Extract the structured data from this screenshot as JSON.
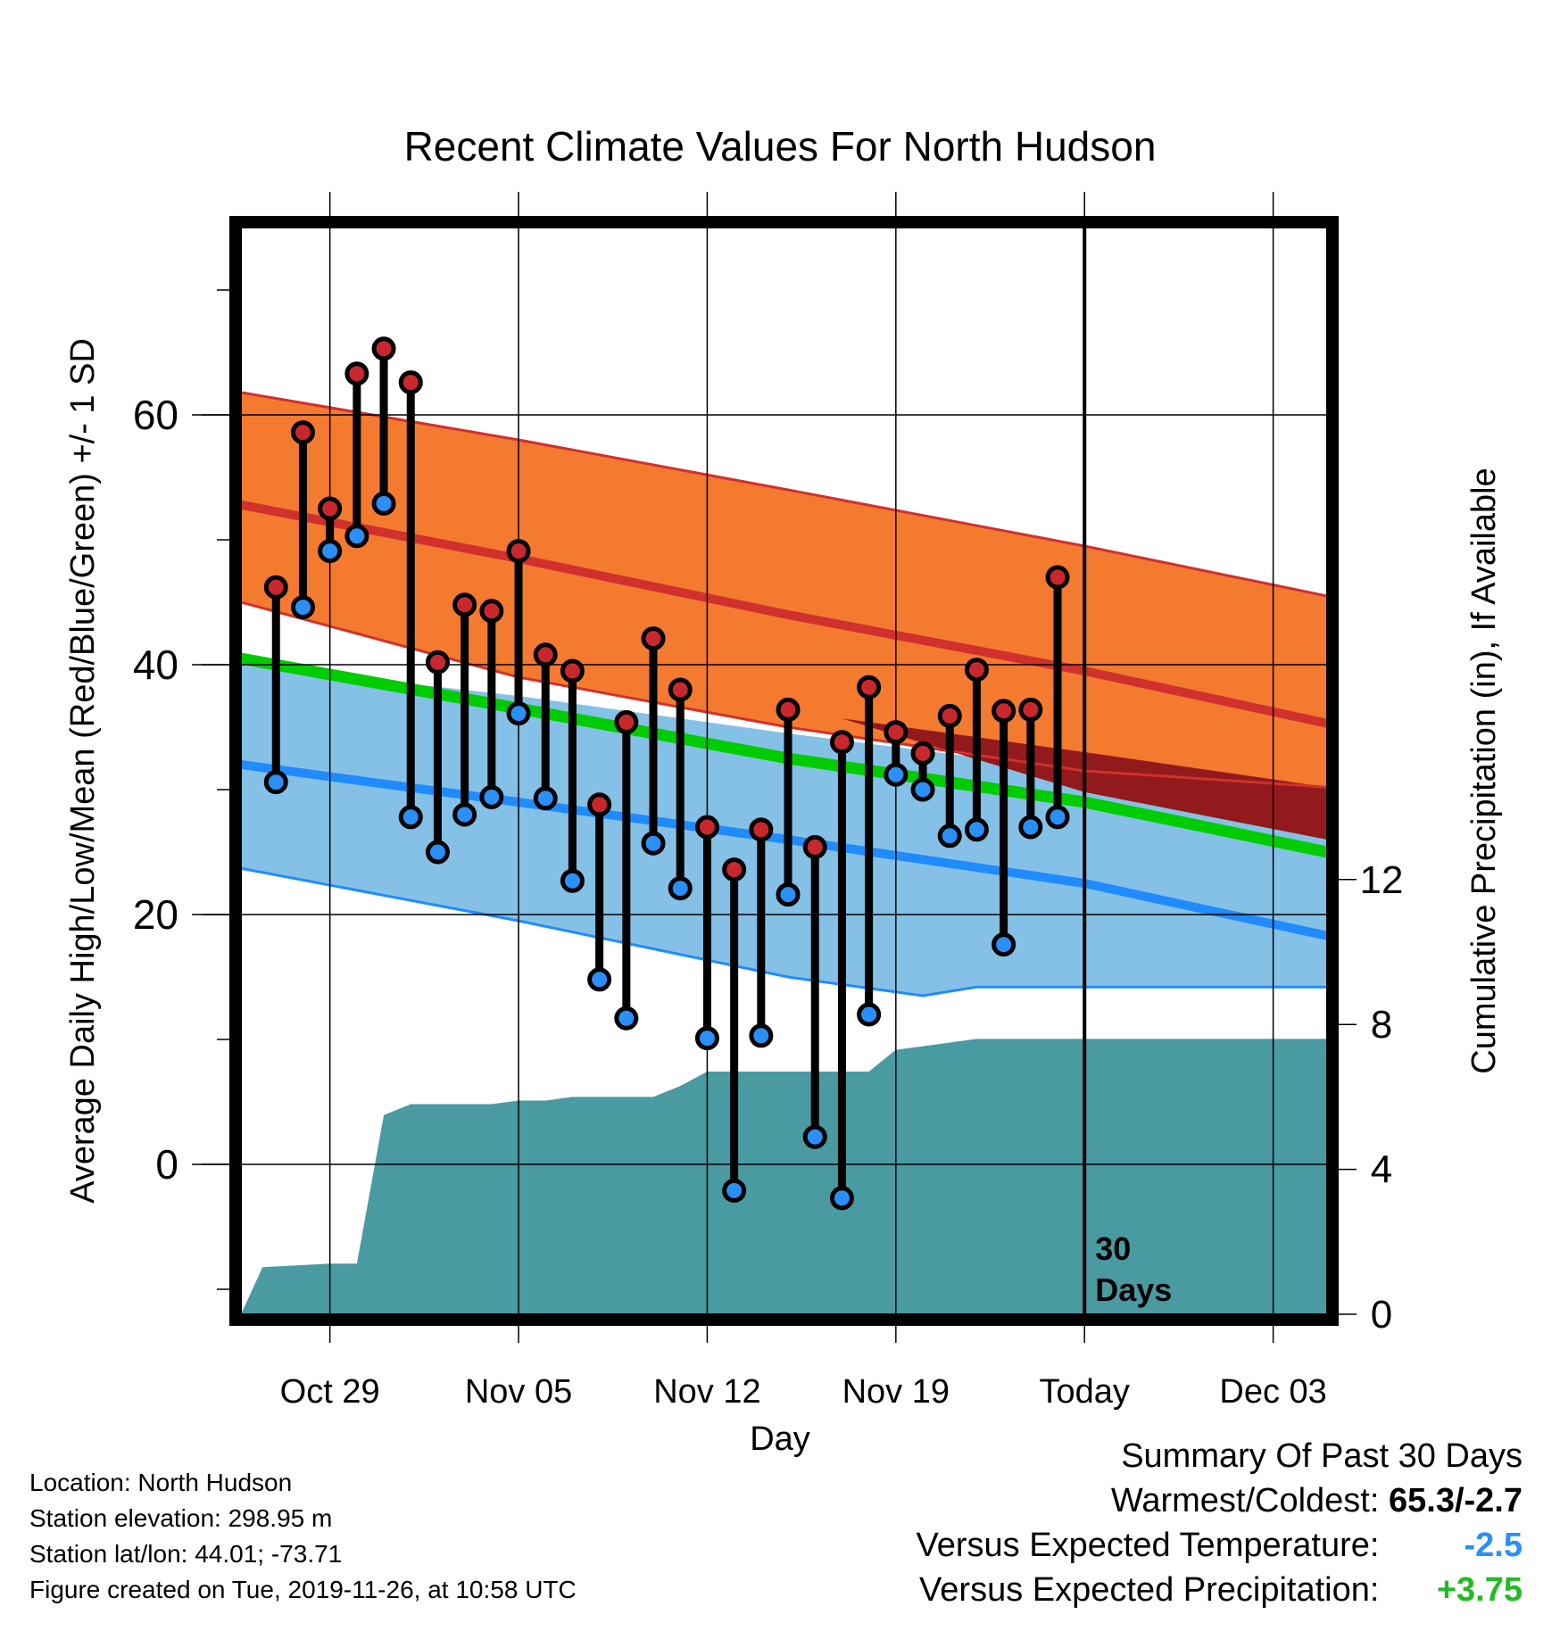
{
  "chart_data": {
    "type": "line",
    "title": "Recent Climate Values For North Hudson",
    "xlabel": "Day",
    "ylabel": "Average Daily High/Low/Mean (Red/Blue/Green) +/- 1 SD",
    "y2label": "Cumulative Precipitation (in), If Available",
    "x_ticks": [
      {
        "day": 3,
        "label": "Oct 29"
      },
      {
        "day": 10,
        "label": "Nov 05"
      },
      {
        "day": 17,
        "label": "Nov 12"
      },
      {
        "day": 24,
        "label": "Nov 19"
      },
      {
        "day": 31,
        "label": "Today"
      },
      {
        "day": 38,
        "label": "Dec 03"
      }
    ],
    "xlim": [
      -0.3,
      40.0
    ],
    "ylim": [
      -12,
      75
    ],
    "y_ticks": [
      0,
      20,
      40,
      60
    ],
    "y2lim": [
      0,
      30
    ],
    "y2_ticks": [
      0,
      4,
      8,
      12
    ],
    "today_day": 31,
    "today_annotation": [
      "30",
      "Days"
    ],
    "grid": true,
    "normals": {
      "high_mean": [
        [
          -0.3,
          52.8
        ],
        [
          10,
          48.5
        ],
        [
          20,
          44.0
        ],
        [
          31,
          39.5
        ],
        [
          40,
          35.3
        ]
      ],
      "high_upper": [
        [
          -0.3,
          61.8
        ],
        [
          10,
          58.0
        ],
        [
          20,
          54.0
        ],
        [
          31,
          49.5
        ],
        [
          40,
          45.5
        ]
      ],
      "high_lower": [
        [
          -0.3,
          45.0
        ],
        [
          10,
          39.0
        ],
        [
          20,
          35.0
        ],
        [
          31,
          31.5
        ],
        [
          40,
          30.2
        ]
      ],
      "low_mean": [
        [
          -0.3,
          32.0
        ],
        [
          10,
          29.0
        ],
        [
          20,
          26.0
        ],
        [
          31,
          22.5
        ],
        [
          40,
          18.3
        ]
      ],
      "low_upper": [
        [
          -0.3,
          40.0
        ],
        [
          10,
          37.5
        ],
        [
          20,
          34.5
        ],
        [
          31,
          31.5
        ],
        [
          40,
          30.2
        ]
      ],
      "low_lower": [
        [
          -0.3,
          23.7
        ],
        [
          10,
          19.5
        ],
        [
          20,
          15.0
        ],
        [
          25,
          13.5
        ],
        [
          27,
          14.2
        ],
        [
          29,
          14.2
        ],
        [
          40,
          14.2
        ]
      ],
      "avg_mean": [
        [
          -0.3,
          40.5
        ],
        [
          10,
          36.5
        ],
        [
          20,
          32.5
        ],
        [
          31,
          29.0
        ],
        [
          40,
          25.0
        ]
      ]
    },
    "series": [
      {
        "name": "High",
        "color": "#c8282d",
        "values": [
          [
            1,
            46.2
          ],
          [
            2,
            58.6
          ],
          [
            3,
            52.5
          ],
          [
            4,
            63.3
          ],
          [
            5,
            65.3
          ],
          [
            6,
            62.6
          ],
          [
            7,
            40.2
          ],
          [
            8,
            44.8
          ],
          [
            9,
            44.3
          ],
          [
            10,
            49.1
          ],
          [
            11,
            40.8
          ],
          [
            12,
            39.5
          ],
          [
            13,
            28.8
          ],
          [
            14,
            35.4
          ],
          [
            15,
            42.1
          ],
          [
            16,
            38.0
          ],
          [
            17,
            27.0
          ],
          [
            18,
            23.6
          ],
          [
            19,
            26.8
          ],
          [
            20,
            36.4
          ],
          [
            21,
            25.4
          ],
          [
            22,
            33.8
          ],
          [
            23,
            38.2
          ],
          [
            24,
            34.6
          ],
          [
            25,
            32.9
          ],
          [
            26,
            35.9
          ],
          [
            27,
            39.6
          ],
          [
            28,
            36.3
          ],
          [
            29,
            36.4
          ],
          [
            30,
            47.0
          ]
        ]
      },
      {
        "name": "Low",
        "color": "#2a8ff7",
        "values": [
          [
            1,
            30.6
          ],
          [
            2,
            44.6
          ],
          [
            3,
            49.1
          ],
          [
            4,
            50.3
          ],
          [
            5,
            52.9
          ],
          [
            6,
            27.8
          ],
          [
            7,
            25.0
          ],
          [
            8,
            28.0
          ],
          [
            9,
            29.4
          ],
          [
            10,
            36.1
          ],
          [
            11,
            29.3
          ],
          [
            12,
            22.7
          ],
          [
            13,
            14.8
          ],
          [
            14,
            11.7
          ],
          [
            15,
            25.7
          ],
          [
            16,
            22.1
          ],
          [
            17,
            10.1
          ],
          [
            18,
            -2.1
          ],
          [
            19,
            10.3
          ],
          [
            20,
            21.6
          ],
          [
            21,
            2.2
          ],
          [
            22,
            -2.7
          ],
          [
            23,
            12.0
          ],
          [
            24,
            31.2
          ],
          [
            25,
            30.0
          ],
          [
            26,
            26.3
          ],
          [
            27,
            26.8
          ],
          [
            28,
            17.6
          ],
          [
            29,
            27.0
          ],
          [
            30,
            27.8
          ]
        ]
      }
    ],
    "precip_cumulative": [
      [
        -0.3,
        0
      ],
      [
        0.5,
        1.3
      ],
      [
        3.0,
        1.4
      ],
      [
        4.0,
        1.4
      ],
      [
        5.0,
        5.5
      ],
      [
        6.0,
        5.8
      ],
      [
        7.5,
        5.8
      ],
      [
        9.0,
        5.8
      ],
      [
        10.0,
        5.9
      ],
      [
        11.0,
        5.9
      ],
      [
        12.0,
        6.0
      ],
      [
        15.0,
        6.0
      ],
      [
        16.0,
        6.3
      ],
      [
        17.0,
        6.7
      ],
      [
        23.0,
        6.7
      ],
      [
        24.0,
        7.3
      ],
      [
        25.0,
        7.4
      ],
      [
        27.0,
        7.6
      ],
      [
        40.0,
        7.6
      ]
    ],
    "colors": {
      "high_band": "#f47a30",
      "high_line": "#d0312d",
      "low_band": "#85c1e6",
      "low_line": "#1f8bff",
      "avg_line": "#00cc00",
      "overlap_band": "#931a1c",
      "precip_fill": "#4a9aa2",
      "high_marker": "#c8282d",
      "low_marker": "#2a8ff7"
    }
  },
  "info": {
    "location": "Location: North Hudson",
    "elevation": "Station elevation: 298.95 m",
    "latlon": "Station lat/lon: 44.01; -73.71",
    "created": "Figure created on Tue, 2019-11-26, at 10:58 UTC"
  },
  "summary": {
    "title": "Summary Of Past 30 Days",
    "warm_cold_label": "Warmest/Coldest:",
    "warm_cold_value": "65.3/-2.7",
    "temp_label": "Versus Expected Temperature:",
    "temp_value": "-2.5",
    "temp_color": "#2a8ff7",
    "precip_label": "Versus Expected Precipitation:",
    "precip_value": "+3.75",
    "precip_color": "#22bb22"
  }
}
